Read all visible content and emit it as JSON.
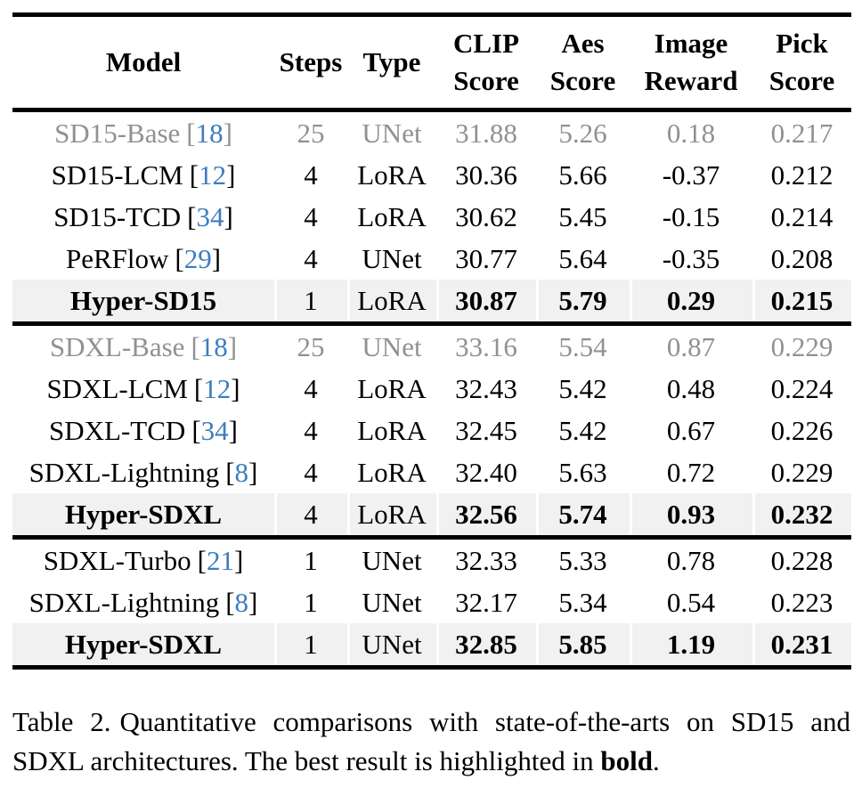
{
  "colors": {
    "text": "#000000",
    "muted_text": "#919191",
    "citation_blue": "#3d7dbf",
    "highlight_background": "#f1f1f1",
    "rule": "#000000",
    "page_background": "#ffffff"
  },
  "table": {
    "columns": [
      {
        "id": "model",
        "label": "Model"
      },
      {
        "id": "steps",
        "label": "Steps"
      },
      {
        "id": "type",
        "label": "Type"
      },
      {
        "id": "clip_score",
        "label": [
          "CLIP",
          "Score"
        ]
      },
      {
        "id": "aes_score",
        "label": [
          "Aes",
          "Score"
        ]
      },
      {
        "id": "image_reward",
        "label": [
          "Image",
          "Reward"
        ]
      },
      {
        "id": "pick_score",
        "label": [
          "Pick",
          "Score"
        ]
      }
    ],
    "groups": [
      {
        "rows": [
          {
            "model": "SD15-Base",
            "citation": "18",
            "steps": "25",
            "type": "UNet",
            "clip": "31.88",
            "aes": "5.26",
            "image_reward": "0.18",
            "pick": "0.217",
            "emphasis": "muted"
          },
          {
            "model": "SD15-LCM",
            "citation": "12",
            "steps": "4",
            "type": "LoRA",
            "clip": "30.36",
            "aes": "5.66",
            "image_reward": "-0.37",
            "pick": "0.212",
            "emphasis": "normal"
          },
          {
            "model": "SD15-TCD",
            "citation": "34",
            "steps": "4",
            "type": "LoRA",
            "clip": "30.62",
            "aes": "5.45",
            "image_reward": "-0.15",
            "pick": "0.214",
            "emphasis": "normal"
          },
          {
            "model": "PeRFlow",
            "citation": "29",
            "steps": "4",
            "type": "UNet",
            "clip": "30.77",
            "aes": "5.64",
            "image_reward": "-0.35",
            "pick": "0.208",
            "emphasis": "normal"
          },
          {
            "model": "Hyper-SD15",
            "citation": null,
            "steps": "1",
            "type": "LoRA",
            "clip": "30.87",
            "aes": "5.79",
            "image_reward": "0.29",
            "pick": "0.215",
            "emphasis": "best"
          }
        ]
      },
      {
        "rows": [
          {
            "model": "SDXL-Base",
            "citation": "18",
            "steps": "25",
            "type": "UNet",
            "clip": "33.16",
            "aes": "5.54",
            "image_reward": "0.87",
            "pick": "0.229",
            "emphasis": "muted"
          },
          {
            "model": "SDXL-LCM",
            "citation": "12",
            "steps": "4",
            "type": "LoRA",
            "clip": "32.43",
            "aes": "5.42",
            "image_reward": "0.48",
            "pick": "0.224",
            "emphasis": "normal"
          },
          {
            "model": "SDXL-TCD",
            "citation": "34",
            "steps": "4",
            "type": "LoRA",
            "clip": "32.45",
            "aes": "5.42",
            "image_reward": "0.67",
            "pick": "0.226",
            "emphasis": "normal"
          },
          {
            "model": "SDXL-Lightning",
            "citation": "8",
            "steps": "4",
            "type": "LoRA",
            "clip": "32.40",
            "aes": "5.63",
            "image_reward": "0.72",
            "pick": "0.229",
            "emphasis": "normal"
          },
          {
            "model": "Hyper-SDXL",
            "citation": null,
            "steps": "4",
            "type": "LoRA",
            "clip": "32.56",
            "aes": "5.74",
            "image_reward": "0.93",
            "pick": "0.232",
            "emphasis": "best"
          }
        ]
      },
      {
        "rows": [
          {
            "model": "SDXL-Turbo",
            "citation": "21",
            "steps": "1",
            "type": "UNet",
            "clip": "32.33",
            "aes": "5.33",
            "image_reward": "0.78",
            "pick": "0.228",
            "emphasis": "normal"
          },
          {
            "model": "SDXL-Lightning",
            "citation": "8",
            "steps": "1",
            "type": "UNet",
            "clip": "32.17",
            "aes": "5.34",
            "image_reward": "0.54",
            "pick": "0.223",
            "emphasis": "normal"
          },
          {
            "model": "Hyper-SDXL",
            "citation": null,
            "steps": "1",
            "type": "UNet",
            "clip": "32.85",
            "aes": "5.85",
            "image_reward": "1.19",
            "pick": "0.231",
            "emphasis": "best"
          }
        ]
      }
    ]
  },
  "caption": {
    "label": "Table 2.",
    "text": "Quantitative comparisons with state-of-the-arts on SD15 and SDXL architectures. The best result is highlighted in ",
    "bold_word": "bold",
    "suffix": "."
  }
}
